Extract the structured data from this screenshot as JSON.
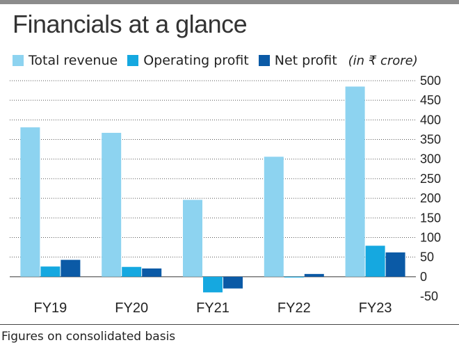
{
  "header": {
    "title": "Financials at a glance",
    "unit": "(in ₹ crore)"
  },
  "footnote": "Figures on consolidated basis",
  "colors": {
    "total_revenue": "#8dd3f0",
    "operating_profit": "#15a8e0",
    "net_profit": "#0b5aa6",
    "gridline": "#555555",
    "top_rule": "#8c8c8c"
  },
  "chart_data": {
    "type": "bar",
    "title": "Financials at a glance",
    "unit": "(in ₹ crore)",
    "categories": [
      "FY19",
      "FY20",
      "FY21",
      "FY22",
      "FY23"
    ],
    "series": [
      {
        "name": "Total revenue",
        "color": "#8dd3f0",
        "values": [
          381,
          367,
          196,
          306,
          485
        ]
      },
      {
        "name": "Operating profit",
        "color": "#15a8e0",
        "values": [
          26,
          25,
          -40,
          -2,
          79
        ]
      },
      {
        "name": "Net profit",
        "color": "#0b5aa6",
        "values": [
          43,
          21,
          -30,
          7,
          62
        ]
      }
    ],
    "ylim": [
      -50,
      500
    ],
    "yticks": [
      500,
      450,
      400,
      350,
      300,
      250,
      200,
      150,
      100,
      50,
      0,
      -50
    ],
    "grid": true,
    "legend_position": "top"
  }
}
